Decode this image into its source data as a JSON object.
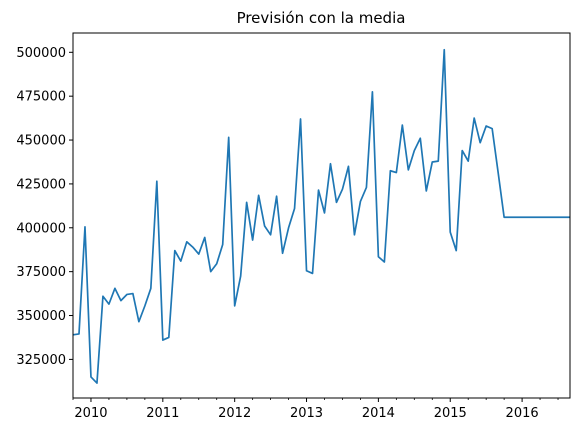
{
  "chart_data": {
    "type": "line",
    "title": "Previsión con la media",
    "xlabel": "",
    "ylabel": "",
    "grid": false,
    "xlim": [
      "2009-10",
      "2016-09"
    ],
    "ylim": [
      303000,
      511000
    ],
    "x_ticks": [
      "2010",
      "2011",
      "2012",
      "2013",
      "2014",
      "2015",
      "2016"
    ],
    "y_ticks": [
      325000,
      350000,
      375000,
      400000,
      425000,
      450000,
      475000,
      500000
    ],
    "y_tick_labels": [
      "325000",
      "350000",
      "375000",
      "400000",
      "425000",
      "450000",
      "475000",
      "500000"
    ],
    "line_color": "#1f77b4",
    "series": [
      {
        "x": [
          "2009-10",
          "2009-11",
          "2009-12",
          "2010-01",
          "2010-02",
          "2010-03",
          "2010-04",
          "2010-05",
          "2010-06",
          "2010-07",
          "2010-08",
          "2010-09",
          "2010-10",
          "2010-11",
          "2010-12",
          "2011-01",
          "2011-02",
          "2011-03",
          "2011-04",
          "2011-05",
          "2011-06",
          "2011-07",
          "2011-08",
          "2011-09",
          "2011-10",
          "2011-11",
          "2011-12",
          "2012-01",
          "2012-02",
          "2012-03",
          "2012-04",
          "2012-05",
          "2012-06",
          "2012-07",
          "2012-08",
          "2012-09",
          "2012-10",
          "2012-11",
          "2012-12",
          "2013-01",
          "2013-02",
          "2013-03",
          "2013-04",
          "2013-05",
          "2013-06",
          "2013-07",
          "2013-08",
          "2013-09",
          "2013-10",
          "2013-11",
          "2013-12",
          "2014-01",
          "2014-02",
          "2014-03",
          "2014-04",
          "2014-05",
          "2014-06",
          "2014-07",
          "2014-08",
          "2014-09",
          "2014-10",
          "2014-11",
          "2014-12",
          "2015-01",
          "2015-02",
          "2015-03",
          "2015-04",
          "2015-05",
          "2015-06",
          "2015-07",
          "2015-08",
          "2015-09",
          "2015-10",
          "2015-11",
          "2015-12",
          "2016-01",
          "2016-02",
          "2016-03",
          "2016-04",
          "2016-05",
          "2016-06",
          "2016-07",
          "2016-08",
          "2016-09"
        ],
        "values": [
          339000,
          339500,
          400500,
          315000,
          311500,
          361000,
          356500,
          365500,
          358500,
          362000,
          362500,
          346500,
          355500,
          365500,
          426500,
          336000,
          337500,
          387000,
          381000,
          392000,
          389000,
          385000,
          394500,
          375000,
          379500,
          390500,
          451500,
          355500,
          372500,
          414500,
          393000,
          418500,
          401000,
          396000,
          418000,
          385500,
          400000,
          411000,
          462000,
          375500,
          374000,
          421500,
          408500,
          436500,
          414500,
          422000,
          435000,
          396000,
          415000,
          423000,
          477500,
          383500,
          380500,
          432500,
          431500,
          458500,
          433000,
          444000,
          451000,
          421000,
          437500,
          438000,
          501500,
          397500,
          387000,
          444000,
          438000,
          462500,
          448500,
          458000,
          456500,
          431500,
          406000,
          406000,
          406000,
          406000,
          406000,
          406000,
          406000,
          406000,
          406000,
          406000,
          406000,
          406000
        ]
      }
    ]
  }
}
